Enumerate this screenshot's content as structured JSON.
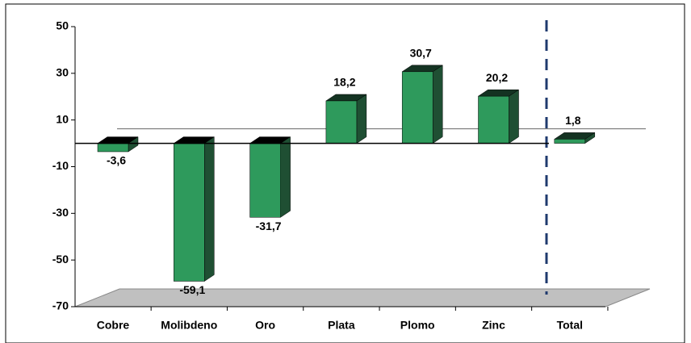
{
  "chart_data": {
    "type": "bar3d",
    "categories": [
      "Cobre",
      "Molibdeno",
      "Oro",
      "Plata",
      "Plomo",
      "Zinc",
      "Total"
    ],
    "values": [
      -3.6,
      -59.1,
      -31.7,
      18.2,
      30.7,
      20.2,
      1.8
    ],
    "value_labels": [
      "-3,6",
      "-59,1",
      "-31,7",
      "18,2",
      "30,7",
      "20,2",
      "1,8"
    ],
    "color": "#2e9a5c",
    "ylim": [
      -70,
      50
    ],
    "yticks": [
      50,
      30,
      10,
      -10,
      -30,
      -50,
      -70
    ]
  }
}
